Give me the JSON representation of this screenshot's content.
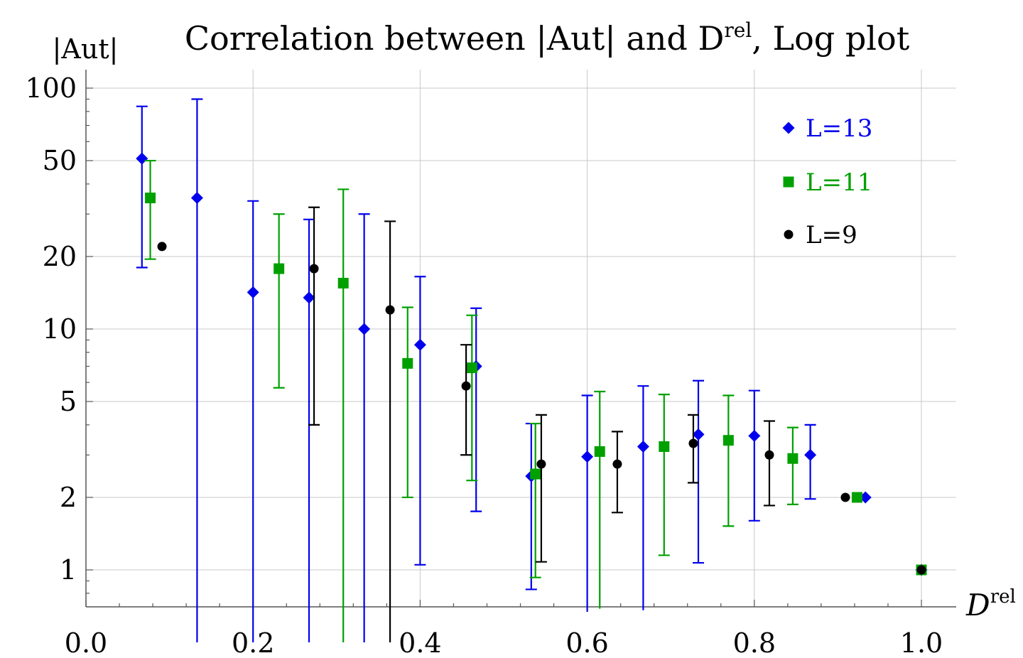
{
  "chart_data": {
    "type": "scatter",
    "title": "Correlation between |Aut| and D",
    "title_superscript": "rel",
    "title_suffix": ", Log plot",
    "xlabel": "D",
    "xlabel_superscript": "rel",
    "ylabel": "|Aut|",
    "y_scale": "log",
    "xlim": [
      0.0,
      1.04
    ],
    "ylim": [
      0.7,
      120
    ],
    "x_ticks": [
      0.0,
      0.2,
      0.4,
      0.6,
      0.8,
      1.0
    ],
    "x_tick_labels": [
      "0.0",
      "0.2",
      "0.4",
      "0.6",
      "0.8",
      "1.0"
    ],
    "y_ticks": [
      1,
      2,
      5,
      10,
      20,
      50,
      100
    ],
    "y_tick_labels": [
      "1",
      "2",
      "5",
      "10",
      "20",
      "50",
      "100"
    ],
    "grid": true,
    "legend_position": "top-right",
    "series": [
      {
        "name": "L=13",
        "color": "#0000ee",
        "marker": "diamond",
        "points": [
          {
            "x": 0.067,
            "y": 51,
            "lo": 18,
            "hi": 84
          },
          {
            "x": 0.133,
            "y": 35,
            "lo": 0.5,
            "hi": 90
          },
          {
            "x": 0.2,
            "y": 14.2,
            "lo": 0.5,
            "hi": 34
          },
          {
            "x": 0.267,
            "y": 13.5,
            "lo": 0.5,
            "hi": 28.5
          },
          {
            "x": 0.333,
            "y": 10,
            "lo": 0.5,
            "hi": 30
          },
          {
            "x": 0.4,
            "y": 8.6,
            "lo": 1.05,
            "hi": 16.5
          },
          {
            "x": 0.467,
            "y": 7,
            "lo": 1.75,
            "hi": 12.2
          },
          {
            "x": 0.533,
            "y": 2.45,
            "lo": 0.83,
            "hi": 4.05
          },
          {
            "x": 0.6,
            "y": 2.95,
            "lo": 0.67,
            "hi": 5.3
          },
          {
            "x": 0.667,
            "y": 3.25,
            "lo": 0.68,
            "hi": 5.8
          },
          {
            "x": 0.733,
            "y": 3.65,
            "lo": 1.07,
            "hi": 6.1
          },
          {
            "x": 0.8,
            "y": 3.6,
            "lo": 1.6,
            "hi": 5.55
          },
          {
            "x": 0.867,
            "y": 3.0,
            "lo": 1.97,
            "hi": 4.0
          },
          {
            "x": 0.933,
            "y": 2.0
          },
          {
            "x": 1.0,
            "y": 1.0
          }
        ]
      },
      {
        "name": "L=11",
        "color": "#00a000",
        "marker": "square",
        "points": [
          {
            "x": 0.077,
            "y": 35,
            "lo": 19.5,
            "hi": 50
          },
          {
            "x": 0.231,
            "y": 17.8,
            "lo": 5.7,
            "hi": 30
          },
          {
            "x": 0.308,
            "y": 15.5,
            "lo": 0.5,
            "hi": 38
          },
          {
            "x": 0.385,
            "y": 7.2,
            "lo": 2.0,
            "hi": 12.3
          },
          {
            "x": 0.462,
            "y": 6.9,
            "lo": 2.35,
            "hi": 11.4
          },
          {
            "x": 0.538,
            "y": 2.5,
            "lo": 0.93,
            "hi": 4.05
          },
          {
            "x": 0.615,
            "y": 3.1,
            "lo": 0.69,
            "hi": 5.5
          },
          {
            "x": 0.692,
            "y": 3.25,
            "lo": 1.15,
            "hi": 5.35
          },
          {
            "x": 0.769,
            "y": 3.45,
            "lo": 1.52,
            "hi": 5.3
          },
          {
            "x": 0.846,
            "y": 2.9,
            "lo": 1.87,
            "hi": 3.9
          },
          {
            "x": 0.923,
            "y": 2.0
          },
          {
            "x": 1.0,
            "y": 1.0
          }
        ]
      },
      {
        "name": "L=9",
        "color": "#000000",
        "marker": "circle",
        "points": [
          {
            "x": 0.091,
            "y": 22
          },
          {
            "x": 0.273,
            "y": 17.8,
            "lo": 4.0,
            "hi": 32
          },
          {
            "x": 0.364,
            "y": 12,
            "lo": 0.5,
            "hi": 28
          },
          {
            "x": 0.455,
            "y": 5.8,
            "lo": 3.0,
            "hi": 8.6
          },
          {
            "x": 0.545,
            "y": 2.75,
            "lo": 1.08,
            "hi": 4.4
          },
          {
            "x": 0.636,
            "y": 2.75,
            "lo": 1.73,
            "hi": 3.75
          },
          {
            "x": 0.727,
            "y": 3.35,
            "lo": 2.3,
            "hi": 4.4
          },
          {
            "x": 0.818,
            "y": 3.0,
            "lo": 1.85,
            "hi": 4.15
          },
          {
            "x": 0.909,
            "y": 2.0
          },
          {
            "x": 1.0,
            "y": 1.0
          }
        ]
      }
    ]
  }
}
